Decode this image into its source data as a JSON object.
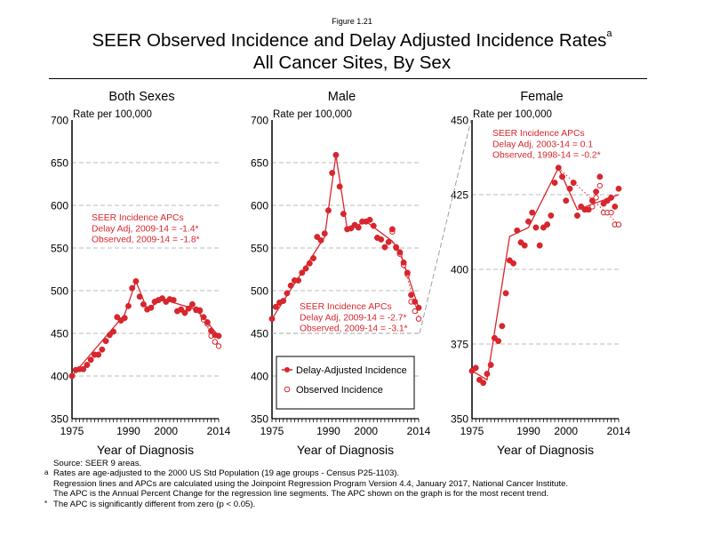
{
  "figure_label": "Figure 1.21",
  "title_line1": "SEER Observed Incidence and Delay Adjusted Incidence Rates",
  "title_superscript": "a",
  "title_line2": "All Cancer Sites, By Sex",
  "colors": {
    "series": "#d7262e",
    "grid": "#bdbdbd",
    "axis": "#000000",
    "connector": "#a0a0a0"
  },
  "legend": {
    "items": [
      {
        "label": "Delay-Adjusted Incidence",
        "marker": "filled-circle-line"
      },
      {
        "label": "Observed Incidence",
        "marker": "open-circle"
      }
    ]
  },
  "footnotes": {
    "source": "Source: SEER 9 areas.",
    "a_mark": "a",
    "a_line1": "Rates are age-adjusted to the 2000 US Std Population (19 age groups - Census P25-1103).",
    "a_line2": "Regression lines and APCs are calculated using the Joinpoint Regression Program Version 4.4, January 2017, National Cancer Institute.",
    "a_line3": "The APC is the Annual Percent Change for the regression line segments. The APC shown on the graph is for the most recent trend.",
    "star_mark": "*",
    "star_line": "The APC is significantly different from zero (p < 0.05)."
  },
  "chart_data": [
    {
      "type": "scatter",
      "title": "Both Sexes",
      "ylabel": "Rate per 100,000",
      "xlabel": "Year of Diagnosis",
      "xlim": [
        1975,
        2014
      ],
      "ylim": [
        350,
        700
      ],
      "xticks": [
        1975,
        1990,
        2000,
        2014
      ],
      "yticks": [
        350,
        400,
        450,
        500,
        550,
        600,
        650,
        700
      ],
      "grid": "horizontal-dashed",
      "annotation": [
        "SEER Incidence APCs",
        "Delay Adj, 2009-14 = -1.4*",
        "Observed, 2009-14 = -1.8*"
      ],
      "x": [
        1975,
        1976,
        1977,
        1978,
        1979,
        1980,
        1981,
        1982,
        1983,
        1984,
        1985,
        1986,
        1987,
        1988,
        1989,
        1990,
        1991,
        1992,
        1993,
        1994,
        1995,
        1996,
        1997,
        1998,
        1999,
        2000,
        2001,
        2002,
        2003,
        2004,
        2005,
        2006,
        2007,
        2008,
        2009,
        2010,
        2011,
        2012,
        2013,
        2014
      ],
      "series": [
        {
          "name": "Delay-Adjusted Incidence",
          "values": [
            400,
            407,
            408,
            408,
            413,
            419,
            425,
            425,
            431,
            441,
            448,
            452,
            469,
            465,
            468,
            482,
            503,
            511,
            493,
            484,
            478,
            480,
            487,
            489,
            491,
            487,
            490,
            489,
            476,
            478,
            474,
            479,
            484,
            478,
            477,
            469,
            463,
            453,
            448,
            447
          ]
        },
        {
          "name": "Observed Incidence",
          "values": [
            400,
            407,
            408,
            408,
            413,
            419,
            425,
            425,
            431,
            441,
            448,
            452,
            469,
            465,
            468,
            482,
            503,
            511,
            493,
            484,
            478,
            480,
            487,
            489,
            491,
            487,
            490,
            489,
            476,
            478,
            474,
            479,
            484,
            477,
            476,
            466,
            461,
            447,
            440,
            435
          ]
        }
      ],
      "trend_delay_adjusted": {
        "x": [
          1975,
          1989,
          1992,
          1995,
          1999,
          2008,
          2014
        ],
        "y": [
          400,
          472,
          511,
          478,
          490,
          478,
          447
        ]
      },
      "trend_observed": {
        "x": [
          2008,
          2014
        ],
        "y": [
          478,
          437
        ]
      }
    },
    {
      "type": "scatter",
      "title": "Male",
      "ylabel": "Rate per 100,000",
      "xlabel": "Year of Diagnosis",
      "xlim": [
        1975,
        2014
      ],
      "ylim": [
        350,
        700
      ],
      "xticks": [
        1975,
        1990,
        2000,
        2014
      ],
      "yticks": [
        350,
        400,
        450,
        500,
        550,
        600,
        650,
        700
      ],
      "grid": "horizontal-dashed",
      "annotation": [
        "SEER Incidence APCs",
        "Delay Adj, 2009-14 = -2.7*",
        "Observed, 2009-14 = -3.1*"
      ],
      "x": [
        1975,
        1976,
        1977,
        1978,
        1979,
        1980,
        1981,
        1982,
        1983,
        1984,
        1985,
        1986,
        1987,
        1988,
        1989,
        1990,
        1991,
        1992,
        1993,
        1994,
        1995,
        1996,
        1997,
        1998,
        1999,
        2000,
        2001,
        2002,
        2003,
        2004,
        2005,
        2006,
        2007,
        2008,
        2009,
        2010,
        2011,
        2012,
        2013,
        2014
      ],
      "series": [
        {
          "name": "Delay-Adjusted Incidence",
          "values": [
            467,
            481,
            486,
            488,
            497,
            506,
            512,
            512,
            521,
            526,
            532,
            538,
            563,
            559,
            567,
            594,
            638,
            659,
            622,
            590,
            572,
            573,
            577,
            574,
            581,
            581,
            583,
            576,
            562,
            560,
            551,
            557,
            572,
            551,
            545,
            533,
            521,
            495,
            487,
            480
          ]
        },
        {
          "name": "Observed Incidence",
          "values": [
            467,
            481,
            486,
            488,
            497,
            506,
            512,
            512,
            521,
            526,
            532,
            538,
            563,
            559,
            567,
            594,
            638,
            659,
            622,
            590,
            572,
            573,
            577,
            574,
            581,
            581,
            583,
            576,
            562,
            560,
            551,
            557,
            569,
            550,
            543,
            530,
            519,
            487,
            476,
            467
          ]
        }
      ],
      "trend_delay_adjusted": {
        "x": [
          1975,
          1989,
          1992,
          1995,
          2000,
          2007,
          2009,
          2014
        ],
        "y": [
          467,
          563,
          659,
          572,
          581,
          558,
          546,
          480
        ]
      },
      "trend_observed": {
        "x": [
          2007,
          2009,
          2014
        ],
        "y": [
          557,
          544,
          470
        ]
      }
    },
    {
      "type": "scatter",
      "title": "Female",
      "ylabel": "Rate per 100,000",
      "xlabel": "Year of Diagnosis",
      "xlim": [
        1975,
        2014
      ],
      "ylim": [
        350,
        450
      ],
      "xticks": [
        1975,
        1990,
        2000,
        2014
      ],
      "yticks": [
        350,
        375,
        400,
        425,
        450
      ],
      "grid": "horizontal-dashed",
      "annotation": [
        "SEER Incidence APCs",
        "Delay Adj, 2003-14 = 0.1",
        "Observed, 1998-14 = -0.2*"
      ],
      "x": [
        1975,
        1976,
        1977,
        1978,
        1979,
        1980,
        1981,
        1982,
        1983,
        1984,
        1985,
        1986,
        1987,
        1988,
        1989,
        1990,
        1991,
        1992,
        1993,
        1994,
        1995,
        1996,
        1997,
        1998,
        1999,
        2000,
        2001,
        2002,
        2003,
        2004,
        2005,
        2006,
        2007,
        2008,
        2009,
        2010,
        2011,
        2012,
        2013,
        2014
      ],
      "series": [
        {
          "name": "Delay-Adjusted Incidence",
          "values": [
            366,
            367,
            363,
            362,
            365,
            368,
            377,
            376,
            381,
            392,
            403,
            402,
            413,
            409,
            408,
            416,
            419,
            414,
            408,
            414,
            415,
            418,
            429,
            434,
            431,
            423,
            427,
            429,
            418,
            421,
            420,
            420,
            423,
            426,
            431,
            422,
            423,
            424,
            421,
            427
          ]
        },
        {
          "name": "Observed Incidence",
          "values": [
            366,
            367,
            363,
            362,
            365,
            368,
            377,
            376,
            381,
            392,
            403,
            402,
            413,
            409,
            408,
            416,
            419,
            414,
            408,
            414,
            415,
            418,
            429,
            434,
            431,
            423,
            427,
            429,
            418,
            421,
            420,
            420,
            421,
            424,
            428,
            419,
            419,
            419,
            415,
            415
          ]
        }
      ],
      "trend_delay_adjusted": {
        "x": [
          1975,
          1979,
          1985,
          1990,
          1998,
          2003,
          2014
        ],
        "y": [
          366,
          363,
          411,
          414,
          434,
          420,
          425
        ]
      },
      "trend_observed": {
        "x": [
          1998,
          2014
        ],
        "y": [
          434,
          415
        ]
      }
    }
  ]
}
